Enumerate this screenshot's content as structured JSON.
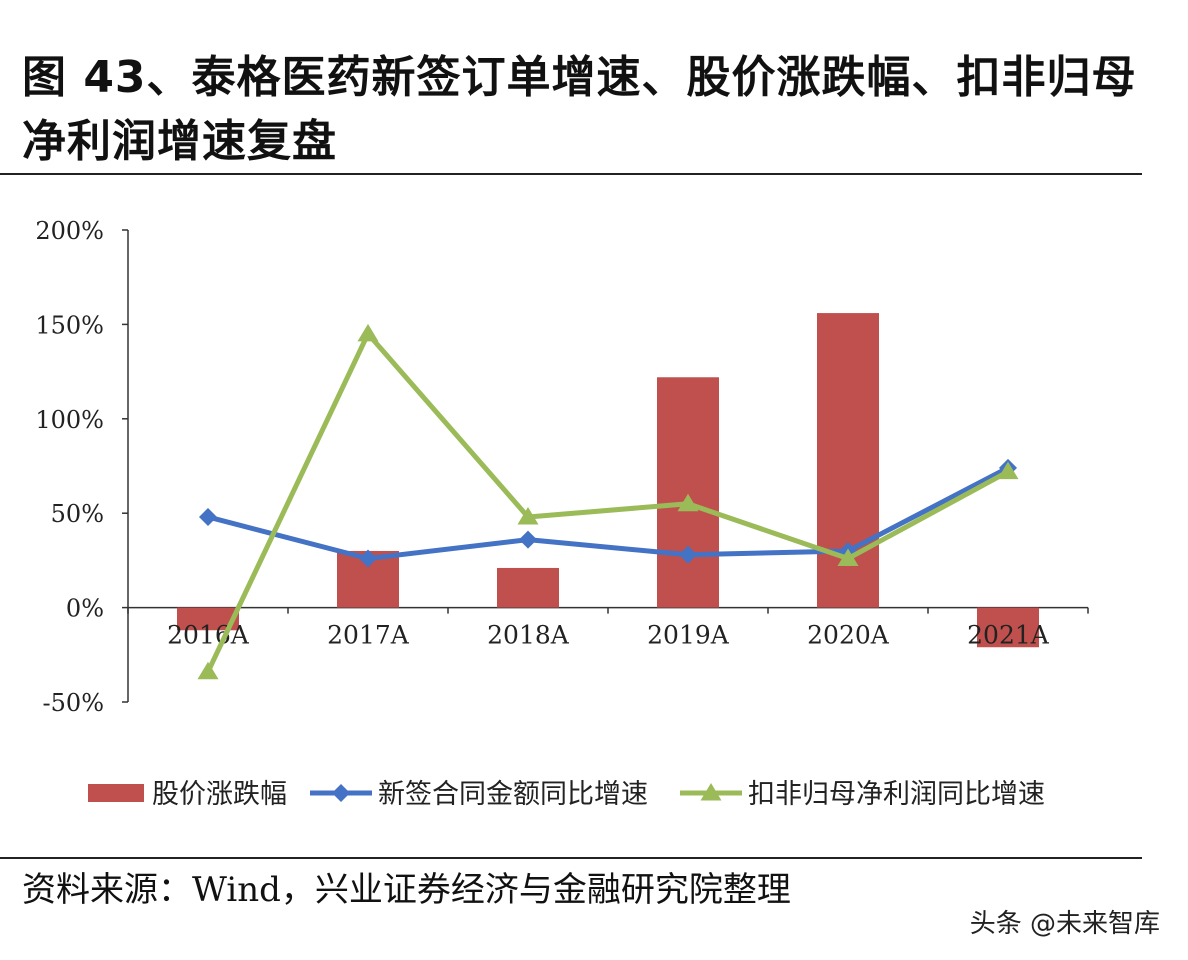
{
  "title": "图 43、泰格医药新签订单增速、股价涨跌幅、扣非归母净利润增速复盘",
  "source": "资料来源：Wind，兴业证券经济与金融研究院整理",
  "watermark": "头条 @未来智库",
  "chart_data": {
    "type": "bar+line",
    "categories": [
      "2016A",
      "2017A",
      "2018A",
      "2019A",
      "2020A",
      "2021A"
    ],
    "y_ticks": [
      "200%",
      "150%",
      "100%",
      "50%",
      "0%",
      "-50%"
    ],
    "ylim": [
      -50,
      200
    ],
    "series": [
      {
        "name": "股价涨跌幅",
        "kind": "bar",
        "color": "#c0504d",
        "values": [
          -12,
          30,
          21,
          122,
          156,
          -21
        ]
      },
      {
        "name": "新签合同金额同比增速",
        "kind": "line",
        "marker": "diamond",
        "color": "#4472c4",
        "values": [
          48,
          26,
          36,
          28,
          30,
          74
        ]
      },
      {
        "name": "扣非归母净利润同比增速",
        "kind": "line",
        "marker": "triangle",
        "color": "#9bbb59",
        "values": [
          -34,
          145,
          48,
          55,
          26,
          72
        ]
      }
    ]
  }
}
